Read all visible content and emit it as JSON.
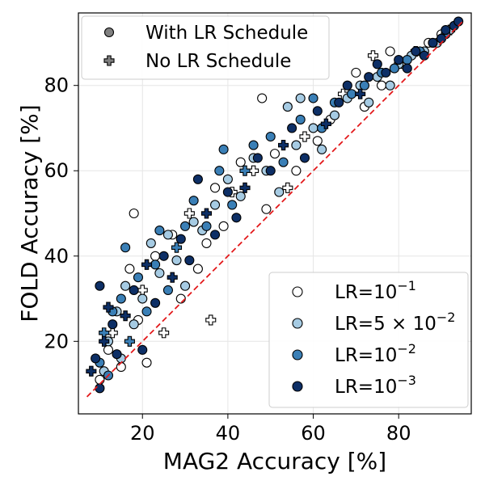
{
  "chart_data": {
    "type": "scatter",
    "xlabel": "MAG2 Accuracy [%]",
    "ylabel": "FOLD Accuracy [%]",
    "xlim": [
      5,
      97
    ],
    "ylim": [
      3,
      97
    ],
    "xticks": [
      20,
      40,
      60,
      80
    ],
    "yticks": [
      20,
      40,
      60,
      80
    ],
    "grid": true,
    "reference_line": {
      "x": [
        7,
        95
      ],
      "y": [
        7,
        95
      ],
      "color": "#e31a1c",
      "style": "dashed"
    },
    "marker_legend": {
      "placement": "top-left",
      "entries": [
        {
          "label": "With LR Schedule",
          "marker": "circle",
          "color": "#808080"
        },
        {
          "label": "No LR Schedule",
          "marker": "plus",
          "color": "#808080"
        }
      ]
    },
    "color_legend": {
      "placement": "bottom-right",
      "entries": [
        {
          "base": "LR=10",
          "exp": "−1",
          "color": "#ffffff"
        },
        {
          "base": "LR=5 × 10",
          "exp": "−2",
          "color": "#a6cbe3"
        },
        {
          "base": "LR=10",
          "exp": "−2",
          "color": "#3a7fb6"
        },
        {
          "base": "LR=10",
          "exp": "−3",
          "color": "#0d2f66"
        }
      ]
    },
    "series": [
      {
        "name": "LR=10^-1",
        "color": "#ffffff",
        "points": [
          {
            "x": 10,
            "y": 11,
            "m": "circle"
          },
          {
            "x": 12,
            "y": 18,
            "m": "circle"
          },
          {
            "x": 13,
            "y": 22,
            "m": "plus"
          },
          {
            "x": 15,
            "y": 14,
            "m": "circle"
          },
          {
            "x": 17,
            "y": 37,
            "m": "circle"
          },
          {
            "x": 18,
            "y": 50,
            "m": "circle"
          },
          {
            "x": 19,
            "y": 25,
            "m": "circle"
          },
          {
            "x": 20,
            "y": 32,
            "m": "plus"
          },
          {
            "x": 21,
            "y": 15,
            "m": "circle"
          },
          {
            "x": 23,
            "y": 40,
            "m": "circle"
          },
          {
            "x": 25,
            "y": 22,
            "m": "plus"
          },
          {
            "x": 27,
            "y": 45,
            "m": "circle"
          },
          {
            "x": 29,
            "y": 30,
            "m": "circle"
          },
          {
            "x": 31,
            "y": 50,
            "m": "plus"
          },
          {
            "x": 33,
            "y": 37,
            "m": "circle"
          },
          {
            "x": 35,
            "y": 43,
            "m": "circle"
          },
          {
            "x": 36,
            "y": 25,
            "m": "plus"
          },
          {
            "x": 37,
            "y": 56,
            "m": "circle"
          },
          {
            "x": 39,
            "y": 47,
            "m": "circle"
          },
          {
            "x": 41,
            "y": 55,
            "m": "plus"
          },
          {
            "x": 43,
            "y": 62,
            "m": "circle"
          },
          {
            "x": 46,
            "y": 60,
            "m": "plus"
          },
          {
            "x": 48,
            "y": 77,
            "m": "circle"
          },
          {
            "x": 49,
            "y": 51,
            "m": "circle"
          },
          {
            "x": 51,
            "y": 64,
            "m": "circle"
          },
          {
            "x": 54,
            "y": 56,
            "m": "plus"
          },
          {
            "x": 56,
            "y": 60,
            "m": "circle"
          },
          {
            "x": 58,
            "y": 68,
            "m": "plus"
          },
          {
            "x": 61,
            "y": 67,
            "m": "circle"
          },
          {
            "x": 64,
            "y": 72,
            "m": "circle"
          },
          {
            "x": 67,
            "y": 78,
            "m": "plus"
          },
          {
            "x": 70,
            "y": 83,
            "m": "circle"
          },
          {
            "x": 72,
            "y": 75,
            "m": "circle"
          },
          {
            "x": 74,
            "y": 87,
            "m": "plus"
          },
          {
            "x": 76,
            "y": 80,
            "m": "circle"
          },
          {
            "x": 78,
            "y": 88,
            "m": "circle"
          },
          {
            "x": 81,
            "y": 85,
            "m": "circle"
          },
          {
            "x": 84,
            "y": 88,
            "m": "plus"
          },
          {
            "x": 87,
            "y": 90,
            "m": "circle"
          },
          {
            "x": 90,
            "y": 92,
            "m": "circle"
          },
          {
            "x": 92,
            "y": 93,
            "m": "plus"
          }
        ]
      },
      {
        "name": "LR=5x10^-2",
        "color": "#a6cbe3",
        "points": [
          {
            "x": 11,
            "y": 13,
            "m": "circle"
          },
          {
            "x": 12,
            "y": 20,
            "m": "circle"
          },
          {
            "x": 14,
            "y": 27,
            "m": "circle"
          },
          {
            "x": 15,
            "y": 16,
            "m": "circle"
          },
          {
            "x": 16,
            "y": 33,
            "m": "circle"
          },
          {
            "x": 18,
            "y": 24,
            "m": "circle"
          },
          {
            "x": 20,
            "y": 30,
            "m": "circle"
          },
          {
            "x": 22,
            "y": 43,
            "m": "circle"
          },
          {
            "x": 24,
            "y": 36,
            "m": "circle"
          },
          {
            "x": 26,
            "y": 45,
            "m": "circle"
          },
          {
            "x": 28,
            "y": 39,
            "m": "circle"
          },
          {
            "x": 30,
            "y": 33,
            "m": "circle"
          },
          {
            "x": 32,
            "y": 48,
            "m": "circle"
          },
          {
            "x": 34,
            "y": 46,
            "m": "circle"
          },
          {
            "x": 37,
            "y": 52,
            "m": "circle"
          },
          {
            "x": 40,
            "y": 58,
            "m": "circle"
          },
          {
            "x": 43,
            "y": 54,
            "m": "circle"
          },
          {
            "x": 46,
            "y": 63,
            "m": "circle"
          },
          {
            "x": 49,
            "y": 60,
            "m": "circle"
          },
          {
            "x": 52,
            "y": 55,
            "m": "circle"
          },
          {
            "x": 54,
            "y": 75,
            "m": "circle"
          },
          {
            "x": 56,
            "y": 66,
            "m": "circle"
          },
          {
            "x": 57,
            "y": 77,
            "m": "circle"
          },
          {
            "x": 60,
            "y": 70,
            "m": "circle"
          },
          {
            "x": 62,
            "y": 65,
            "m": "circle"
          },
          {
            "x": 65,
            "y": 73,
            "m": "circle"
          },
          {
            "x": 68,
            "y": 77,
            "m": "circle"
          },
          {
            "x": 71,
            "y": 80,
            "m": "circle"
          },
          {
            "x": 73,
            "y": 76,
            "m": "circle"
          },
          {
            "x": 75,
            "y": 82,
            "m": "circle"
          },
          {
            "x": 78,
            "y": 80,
            "m": "circle"
          },
          {
            "x": 80,
            "y": 85,
            "m": "circle"
          },
          {
            "x": 83,
            "y": 87,
            "m": "circle"
          },
          {
            "x": 86,
            "y": 88,
            "m": "circle"
          },
          {
            "x": 89,
            "y": 90,
            "m": "circle"
          },
          {
            "x": 92,
            "y": 93,
            "m": "circle"
          }
        ]
      },
      {
        "name": "LR=10^-2",
        "color": "#3a7fb6",
        "points": [
          {
            "x": 10,
            "y": 15,
            "m": "circle"
          },
          {
            "x": 11,
            "y": 22,
            "m": "plus"
          },
          {
            "x": 12,
            "y": 12,
            "m": "circle"
          },
          {
            "x": 13,
            "y": 27,
            "m": "circle"
          },
          {
            "x": 15,
            "y": 30,
            "m": "circle"
          },
          {
            "x": 16,
            "y": 42,
            "m": "circle"
          },
          {
            "x": 17,
            "y": 20,
            "m": "plus"
          },
          {
            "x": 19,
            "y": 35,
            "m": "circle"
          },
          {
            "x": 21,
            "y": 27,
            "m": "circle"
          },
          {
            "x": 23,
            "y": 38,
            "m": "circle"
          },
          {
            "x": 24,
            "y": 46,
            "m": "circle"
          },
          {
            "x": 26,
            "y": 32,
            "m": "circle"
          },
          {
            "x": 28,
            "y": 42,
            "m": "plus"
          },
          {
            "x": 30,
            "y": 47,
            "m": "circle"
          },
          {
            "x": 32,
            "y": 53,
            "m": "circle"
          },
          {
            "x": 35,
            "y": 47,
            "m": "circle"
          },
          {
            "x": 38,
            "y": 60,
            "m": "circle"
          },
          {
            "x": 39,
            "y": 65,
            "m": "circle"
          },
          {
            "x": 41,
            "y": 52,
            "m": "circle"
          },
          {
            "x": 44,
            "y": 60,
            "m": "plus"
          },
          {
            "x": 46,
            "y": 66,
            "m": "circle"
          },
          {
            "x": 50,
            "y": 68,
            "m": "circle"
          },
          {
            "x": 53,
            "y": 62,
            "m": "circle"
          },
          {
            "x": 57,
            "y": 72,
            "m": "circle"
          },
          {
            "x": 60,
            "y": 77,
            "m": "circle"
          },
          {
            "x": 62,
            "y": 70,
            "m": "circle"
          },
          {
            "x": 65,
            "y": 76,
            "m": "circle"
          },
          {
            "x": 69,
            "y": 78,
            "m": "circle"
          },
          {
            "x": 72,
            "y": 80,
            "m": "circle"
          },
          {
            "x": 76,
            "y": 83,
            "m": "circle"
          },
          {
            "x": 79,
            "y": 84,
            "m": "circle"
          },
          {
            "x": 82,
            "y": 86,
            "m": "circle"
          },
          {
            "x": 85,
            "y": 88,
            "m": "circle"
          },
          {
            "x": 88,
            "y": 90,
            "m": "circle"
          },
          {
            "x": 91,
            "y": 92,
            "m": "circle"
          }
        ]
      },
      {
        "name": "LR=10^-3",
        "color": "#0d2f66",
        "points": [
          {
            "x": 8,
            "y": 13,
            "m": "plus"
          },
          {
            "x": 9,
            "y": 16,
            "m": "circle"
          },
          {
            "x": 10,
            "y": 9,
            "m": "circle"
          },
          {
            "x": 10,
            "y": 33,
            "m": "circle"
          },
          {
            "x": 11,
            "y": 20,
            "m": "plus"
          },
          {
            "x": 12,
            "y": 28,
            "m": "plus"
          },
          {
            "x": 13,
            "y": 24,
            "m": "circle"
          },
          {
            "x": 14,
            "y": 17,
            "m": "circle"
          },
          {
            "x": 16,
            "y": 26,
            "m": "plus"
          },
          {
            "x": 18,
            "y": 32,
            "m": "circle"
          },
          {
            "x": 20,
            "y": 18,
            "m": "circle"
          },
          {
            "x": 21,
            "y": 38,
            "m": "plus"
          },
          {
            "x": 23,
            "y": 29,
            "m": "circle"
          },
          {
            "x": 25,
            "y": 40,
            "m": "circle"
          },
          {
            "x": 27,
            "y": 35,
            "m": "plus"
          },
          {
            "x": 29,
            "y": 44,
            "m": "circle"
          },
          {
            "x": 31,
            "y": 39,
            "m": "circle"
          },
          {
            "x": 33,
            "y": 58,
            "m": "circle"
          },
          {
            "x": 35,
            "y": 50,
            "m": "plus"
          },
          {
            "x": 37,
            "y": 45,
            "m": "circle"
          },
          {
            "x": 40,
            "y": 55,
            "m": "circle"
          },
          {
            "x": 42,
            "y": 49,
            "m": "circle"
          },
          {
            "x": 44,
            "y": 56,
            "m": "plus"
          },
          {
            "x": 47,
            "y": 63,
            "m": "circle"
          },
          {
            "x": 50,
            "y": 60,
            "m": "circle"
          },
          {
            "x": 53,
            "y": 66,
            "m": "plus"
          },
          {
            "x": 55,
            "y": 70,
            "m": "circle"
          },
          {
            "x": 58,
            "y": 63,
            "m": "circle"
          },
          {
            "x": 61,
            "y": 74,
            "m": "circle"
          },
          {
            "x": 63,
            "y": 71,
            "m": "plus"
          },
          {
            "x": 66,
            "y": 76,
            "m": "circle"
          },
          {
            "x": 68,
            "y": 80,
            "m": "circle"
          },
          {
            "x": 71,
            "y": 78,
            "m": "plus"
          },
          {
            "x": 73,
            "y": 82,
            "m": "circle"
          },
          {
            "x": 75,
            "y": 85,
            "m": "circle"
          },
          {
            "x": 77,
            "y": 83,
            "m": "circle"
          },
          {
            "x": 80,
            "y": 86,
            "m": "circle"
          },
          {
            "x": 82,
            "y": 84,
            "m": "circle"
          },
          {
            "x": 84,
            "y": 88,
            "m": "circle"
          },
          {
            "x": 86,
            "y": 87,
            "m": "circle"
          },
          {
            "x": 88,
            "y": 90,
            "m": "circle"
          },
          {
            "x": 90,
            "y": 91,
            "m": "circle"
          },
          {
            "x": 91,
            "y": 93,
            "m": "circle"
          },
          {
            "x": 93,
            "y": 94,
            "m": "circle"
          },
          {
            "x": 94,
            "y": 95,
            "m": "circle"
          }
        ]
      }
    ]
  }
}
